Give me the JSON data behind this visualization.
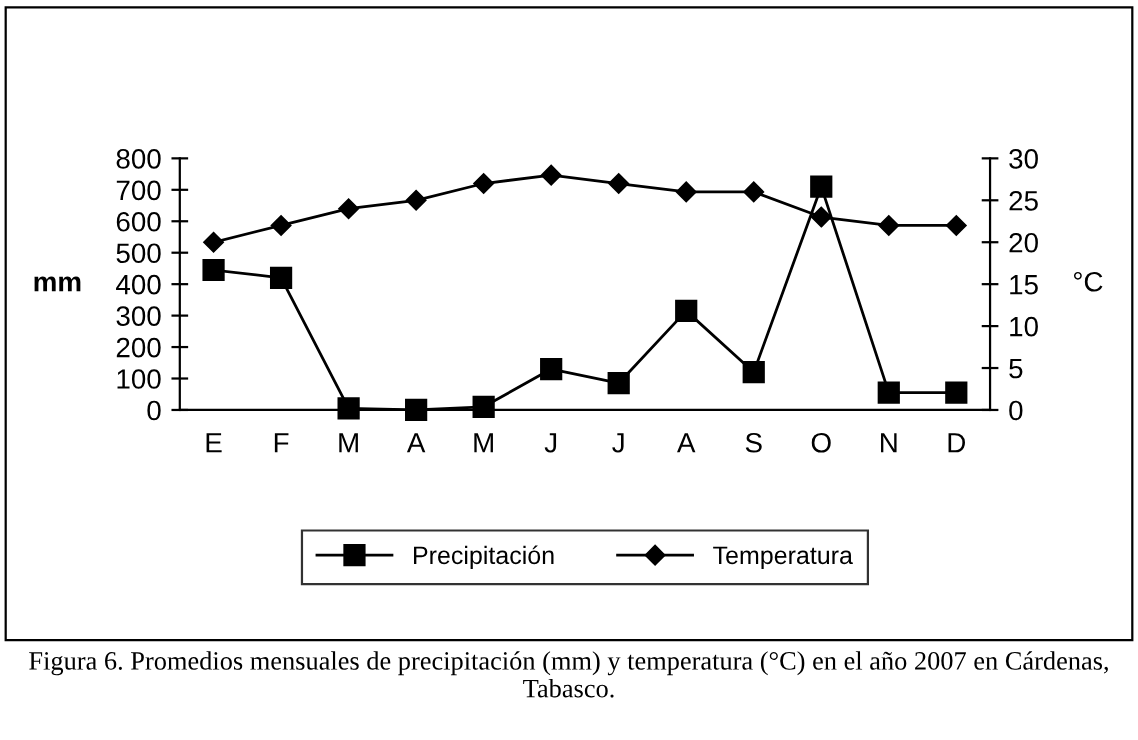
{
  "chart_data": {
    "type": "line",
    "categories": [
      "E",
      "F",
      "M",
      "A",
      "M",
      "J",
      "J",
      "A",
      "S",
      "O",
      "N",
      "D"
    ],
    "series": [
      {
        "name": "Precipitación",
        "color": "#000000",
        "marker": "square",
        "values": [
          445,
          420,
          5,
          0,
          10,
          130,
          85,
          315,
          120,
          710,
          55,
          55
        ]
      },
      {
        "name": "Temperatura",
        "color": "#000000",
        "marker": "diamond",
        "axis": "y2",
        "values": [
          20,
          22,
          24,
          25,
          27,
          28,
          27,
          26,
          26,
          23,
          22,
          22
        ]
      }
    ],
    "ylabel": "mm",
    "y2label": "°C",
    "ylim": [
      0,
      800
    ],
    "yticks": [
      0,
      100,
      200,
      300,
      400,
      500,
      600,
      700,
      800
    ],
    "y2lim": [
      0,
      30
    ],
    "y2ticks": [
      0,
      5,
      10,
      15,
      20,
      25,
      30
    ],
    "grid": false,
    "legend": "bottom",
    "line_style": "solid",
    "annotations": [
      "Figura 6. Promedios mensuales de precipitación (mm) y temperatura (°C) en el año 2007 en Cárdenas, Tabasco."
    ]
  }
}
